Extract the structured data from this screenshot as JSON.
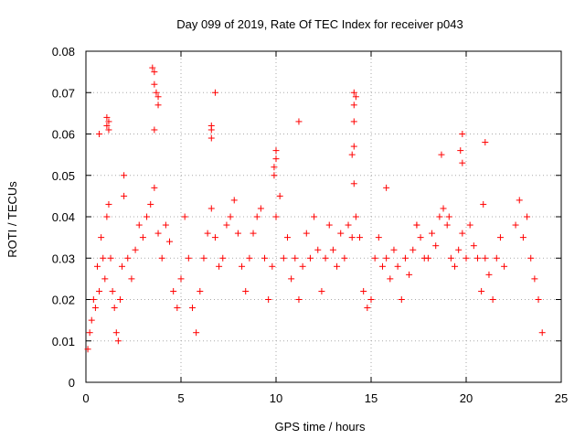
{
  "chart_data": {
    "type": "scatter",
    "title": "Day 099 of 2019, Rate Of TEC Index for receiver p043",
    "xlabel": "GPS time / hours",
    "ylabel": "ROTI / TECUs",
    "xlim": [
      0,
      25
    ],
    "ylim": [
      0,
      0.08
    ],
    "xticks": [
      0,
      5,
      10,
      15,
      20,
      25
    ],
    "xtick_labels": [
      "0",
      "5",
      "10",
      "15",
      "20",
      "25"
    ],
    "yticks": [
      0,
      0.01,
      0.02,
      0.03,
      0.04,
      0.05,
      0.06,
      0.07,
      0.08
    ],
    "ytick_labels": [
      "0",
      "0.01",
      "0.02",
      "0.03",
      "0.04",
      "0.05",
      "0.06",
      "0.07",
      "0.08"
    ],
    "grid": true,
    "marker": "+",
    "color": "#ff0000",
    "series": [
      {
        "name": "ROTI",
        "points": [
          [
            0.1,
            0.008
          ],
          [
            0.2,
            0.012
          ],
          [
            0.3,
            0.015
          ],
          [
            0.4,
            0.02
          ],
          [
            0.5,
            0.018
          ],
          [
            0.6,
            0.028
          ],
          [
            0.7,
            0.022
          ],
          [
            0.8,
            0.035
          ],
          [
            0.9,
            0.03
          ],
          [
            1.0,
            0.025
          ],
          [
            1.1,
            0.04
          ],
          [
            1.2,
            0.043
          ],
          [
            1.3,
            0.03
          ],
          [
            1.4,
            0.022
          ],
          [
            1.5,
            0.018
          ],
          [
            1.6,
            0.012
          ],
          [
            1.7,
            0.01
          ],
          [
            1.8,
            0.02
          ],
          [
            1.9,
            0.028
          ],
          [
            2.0,
            0.045
          ],
          [
            2.2,
            0.03
          ],
          [
            2.4,
            0.025
          ],
          [
            2.6,
            0.032
          ],
          [
            2.8,
            0.038
          ],
          [
            3.0,
            0.035
          ],
          [
            3.2,
            0.04
          ],
          [
            3.4,
            0.043
          ],
          [
            3.6,
            0.047
          ],
          [
            3.8,
            0.036
          ],
          [
            4.0,
            0.03
          ],
          [
            4.2,
            0.038
          ],
          [
            4.4,
            0.034
          ],
          [
            4.6,
            0.022
          ],
          [
            4.8,
            0.018
          ],
          [
            5.0,
            0.025
          ],
          [
            5.2,
            0.04
          ],
          [
            5.4,
            0.03
          ],
          [
            5.6,
            0.018
          ],
          [
            5.8,
            0.012
          ],
          [
            6.0,
            0.022
          ],
          [
            6.2,
            0.03
          ],
          [
            6.4,
            0.036
          ],
          [
            6.6,
            0.042
          ],
          [
            6.8,
            0.035
          ],
          [
            7.0,
            0.028
          ],
          [
            7.2,
            0.03
          ],
          [
            7.4,
            0.038
          ],
          [
            7.6,
            0.04
          ],
          [
            7.8,
            0.044
          ],
          [
            8.0,
            0.036
          ],
          [
            8.2,
            0.028
          ],
          [
            8.4,
            0.022
          ],
          [
            8.6,
            0.03
          ],
          [
            8.8,
            0.036
          ],
          [
            9.0,
            0.04
          ],
          [
            9.2,
            0.042
          ],
          [
            9.4,
            0.03
          ],
          [
            9.6,
            0.02
          ],
          [
            9.8,
            0.028
          ],
          [
            10.0,
            0.04
          ],
          [
            10.2,
            0.045
          ],
          [
            10.4,
            0.03
          ],
          [
            10.6,
            0.035
          ],
          [
            10.8,
            0.025
          ],
          [
            11.0,
            0.03
          ],
          [
            11.2,
            0.02
          ],
          [
            11.4,
            0.028
          ],
          [
            11.6,
            0.036
          ],
          [
            11.8,
            0.03
          ],
          [
            12.0,
            0.04
          ],
          [
            12.2,
            0.032
          ],
          [
            12.4,
            0.022
          ],
          [
            12.6,
            0.03
          ],
          [
            12.8,
            0.038
          ],
          [
            13.0,
            0.032
          ],
          [
            13.2,
            0.028
          ],
          [
            13.4,
            0.036
          ],
          [
            13.6,
            0.03
          ],
          [
            13.8,
            0.038
          ],
          [
            14.0,
            0.035
          ],
          [
            14.2,
            0.04
          ],
          [
            14.4,
            0.035
          ],
          [
            14.6,
            0.022
          ],
          [
            14.8,
            0.018
          ],
          [
            15.0,
            0.02
          ],
          [
            15.2,
            0.03
          ],
          [
            15.4,
            0.035
          ],
          [
            15.6,
            0.028
          ],
          [
            15.8,
            0.03
          ],
          [
            16.0,
            0.025
          ],
          [
            16.2,
            0.032
          ],
          [
            16.4,
            0.028
          ],
          [
            16.6,
            0.02
          ],
          [
            16.8,
            0.03
          ],
          [
            17.0,
            0.026
          ],
          [
            17.2,
            0.032
          ],
          [
            17.4,
            0.038
          ],
          [
            17.6,
            0.035
          ],
          [
            17.8,
            0.03
          ],
          [
            18.0,
            0.03
          ],
          [
            18.2,
            0.036
          ],
          [
            18.4,
            0.033
          ],
          [
            18.6,
            0.04
          ],
          [
            18.8,
            0.042
          ],
          [
            19.0,
            0.038
          ],
          [
            19.2,
            0.03
          ],
          [
            19.4,
            0.028
          ],
          [
            19.6,
            0.032
          ],
          [
            19.8,
            0.036
          ],
          [
            20.0,
            0.03
          ],
          [
            20.2,
            0.038
          ],
          [
            20.4,
            0.033
          ],
          [
            20.6,
            0.03
          ],
          [
            20.8,
            0.022
          ],
          [
            21.0,
            0.03
          ],
          [
            21.2,
            0.026
          ],
          [
            21.4,
            0.02
          ],
          [
            21.6,
            0.03
          ],
          [
            21.8,
            0.035
          ],
          [
            22.0,
            0.028
          ],
          [
            22.6,
            0.038
          ],
          [
            22.8,
            0.044
          ],
          [
            23.0,
            0.035
          ],
          [
            23.2,
            0.04
          ],
          [
            23.4,
            0.03
          ],
          [
            23.6,
            0.025
          ],
          [
            23.8,
            0.02
          ],
          [
            24.0,
            0.012
          ],
          [
            1.1,
            0.064
          ],
          [
            1.1,
            0.062
          ],
          [
            1.2,
            0.063
          ],
          [
            1.2,
            0.061
          ],
          [
            0.7,
            0.06
          ],
          [
            2.0,
            0.05
          ],
          [
            3.5,
            0.076
          ],
          [
            3.6,
            0.075
          ],
          [
            3.6,
            0.072
          ],
          [
            3.7,
            0.07
          ],
          [
            3.8,
            0.069
          ],
          [
            3.8,
            0.067
          ],
          [
            3.6,
            0.061
          ],
          [
            6.6,
            0.062
          ],
          [
            6.6,
            0.061
          ],
          [
            6.6,
            0.059
          ],
          [
            6.8,
            0.07
          ],
          [
            10.0,
            0.056
          ],
          [
            10.0,
            0.054
          ],
          [
            9.9,
            0.052
          ],
          [
            9.9,
            0.05
          ],
          [
            11.2,
            0.063
          ],
          [
            14.1,
            0.07
          ],
          [
            14.1,
            0.067
          ],
          [
            14.2,
            0.069
          ],
          [
            14.1,
            0.063
          ],
          [
            14.1,
            0.057
          ],
          [
            14.0,
            0.055
          ],
          [
            14.1,
            0.048
          ],
          [
            15.8,
            0.047
          ],
          [
            18.7,
            0.055
          ],
          [
            19.8,
            0.06
          ],
          [
            19.7,
            0.056
          ],
          [
            19.8,
            0.053
          ],
          [
            21.0,
            0.058
          ],
          [
            20.9,
            0.043
          ],
          [
            19.1,
            0.04
          ],
          [
            17.4,
            0.038
          ]
        ]
      }
    ]
  }
}
